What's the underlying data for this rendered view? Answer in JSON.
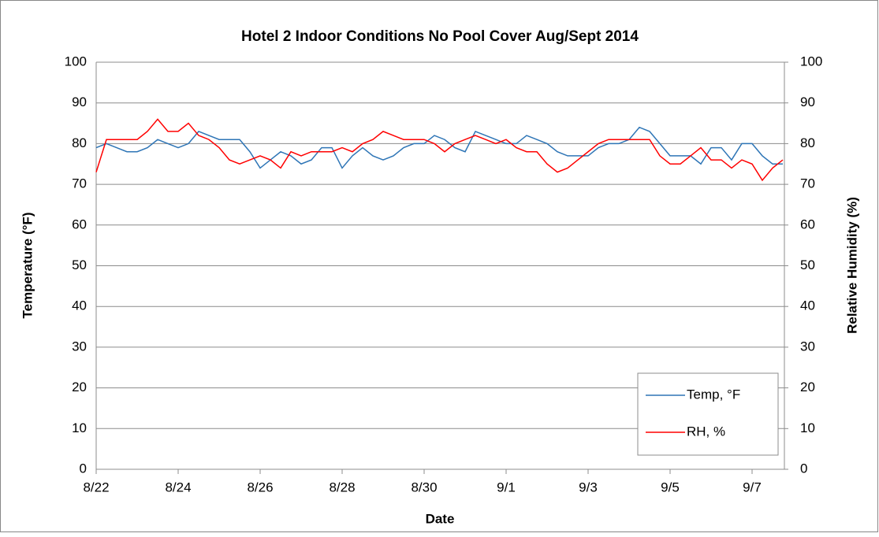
{
  "chart_data": {
    "type": "line",
    "title": "Hotel 2 Indoor Conditions No Pool Cover Aug/Sept 2014",
    "xlabel": "Date",
    "ylabel": "Temperature (°F)",
    "y2label": "Relative Humidity (%)",
    "categories": [
      "8/22",
      null,
      null,
      null,
      null,
      null,
      null,
      null,
      "8/24",
      null,
      null,
      null,
      null,
      null,
      null,
      null,
      "8/26",
      null,
      null,
      null,
      null,
      null,
      null,
      null,
      "8/28",
      null,
      null,
      null,
      null,
      null,
      null,
      null,
      "8/30",
      null,
      null,
      null,
      null,
      null,
      null,
      null,
      "9/1",
      null,
      null,
      null,
      null,
      null,
      null,
      null,
      "9/3",
      null,
      null,
      null,
      null,
      null,
      null,
      null,
      "9/5",
      null,
      null,
      null,
      null,
      null,
      null,
      null,
      "9/7",
      null,
      null,
      null
    ],
    "series": [
      {
        "name": "Temp, °F",
        "color": "#2e75b6",
        "values": [
          79,
          80,
          79,
          78,
          78,
          79,
          81,
          80,
          79,
          80,
          83,
          82,
          81,
          81,
          81,
          78,
          74,
          76,
          78,
          77,
          75,
          76,
          79,
          79,
          74,
          77,
          79,
          77,
          76,
          77,
          79,
          80,
          80,
          82,
          81,
          79,
          78,
          83,
          82,
          81,
          80,
          80,
          82,
          81,
          80,
          78,
          77,
          77,
          77,
          79,
          80,
          80,
          81,
          84,
          83,
          80,
          77,
          77,
          77,
          75,
          79,
          79,
          76,
          80,
          80,
          77,
          75,
          75
        ]
      },
      {
        "name": "RH, %",
        "color": "#ff0000",
        "axis": "y2",
        "values": [
          73,
          81,
          81,
          81,
          81,
          83,
          86,
          83,
          83,
          85,
          82,
          81,
          79,
          76,
          75,
          76,
          77,
          76,
          74,
          78,
          77,
          78,
          78,
          78,
          79,
          78,
          80,
          81,
          83,
          82,
          81,
          81,
          81,
          80,
          78,
          80,
          81,
          82,
          81,
          80,
          81,
          79,
          78,
          78,
          75,
          73,
          74,
          76,
          78,
          80,
          81,
          81,
          81,
          81,
          81,
          77,
          75,
          75,
          77,
          79,
          76,
          76,
          74,
          76,
          75,
          71,
          74,
          76
        ]
      }
    ],
    "ylim": [
      0,
      100
    ],
    "yticks": [
      0,
      10,
      20,
      30,
      40,
      50,
      60,
      70,
      80,
      90,
      100
    ],
    "y2lim": [
      0,
      100
    ],
    "y2ticks": [
      0,
      10,
      20,
      30,
      40,
      50,
      60,
      70,
      80,
      90,
      100
    ],
    "grid": true,
    "legend": "lower right"
  }
}
